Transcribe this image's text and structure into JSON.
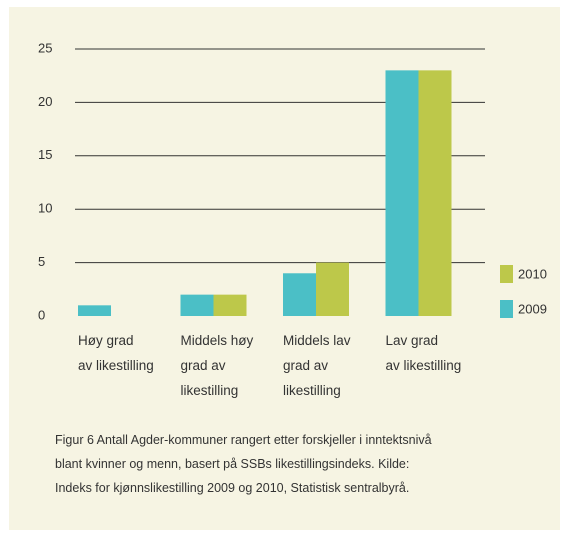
{
  "chart_data": {
    "type": "bar",
    "categories": [
      "Høy grad\nav likestilling",
      "Middels høy\ngrad av\nlikestilling",
      "Middels lav\ngrad av\nlikestilling",
      "Lav grad\nav likestilling"
    ],
    "series": [
      {
        "name": "2009",
        "color": "#4bbfc6",
        "values": [
          1,
          2,
          4,
          23
        ]
      },
      {
        "name": "2010",
        "color": "#bdc84a",
        "values": [
          0,
          2,
          5,
          23
        ]
      }
    ],
    "ylim": [
      0,
      25
    ],
    "yticks": [
      0,
      5,
      10,
      15,
      20,
      25
    ],
    "grid": true,
    "caption": "Figur 6 Antall Agder-kommuner rangert etter forskjeller i inntektsnivå\nblant kvinner og menn, basert på SSBs likestillingsindeks. Kilde:\nIndeks for kjønnslikestilling 2009 og 2010, Statistisk sentralbyrå."
  }
}
